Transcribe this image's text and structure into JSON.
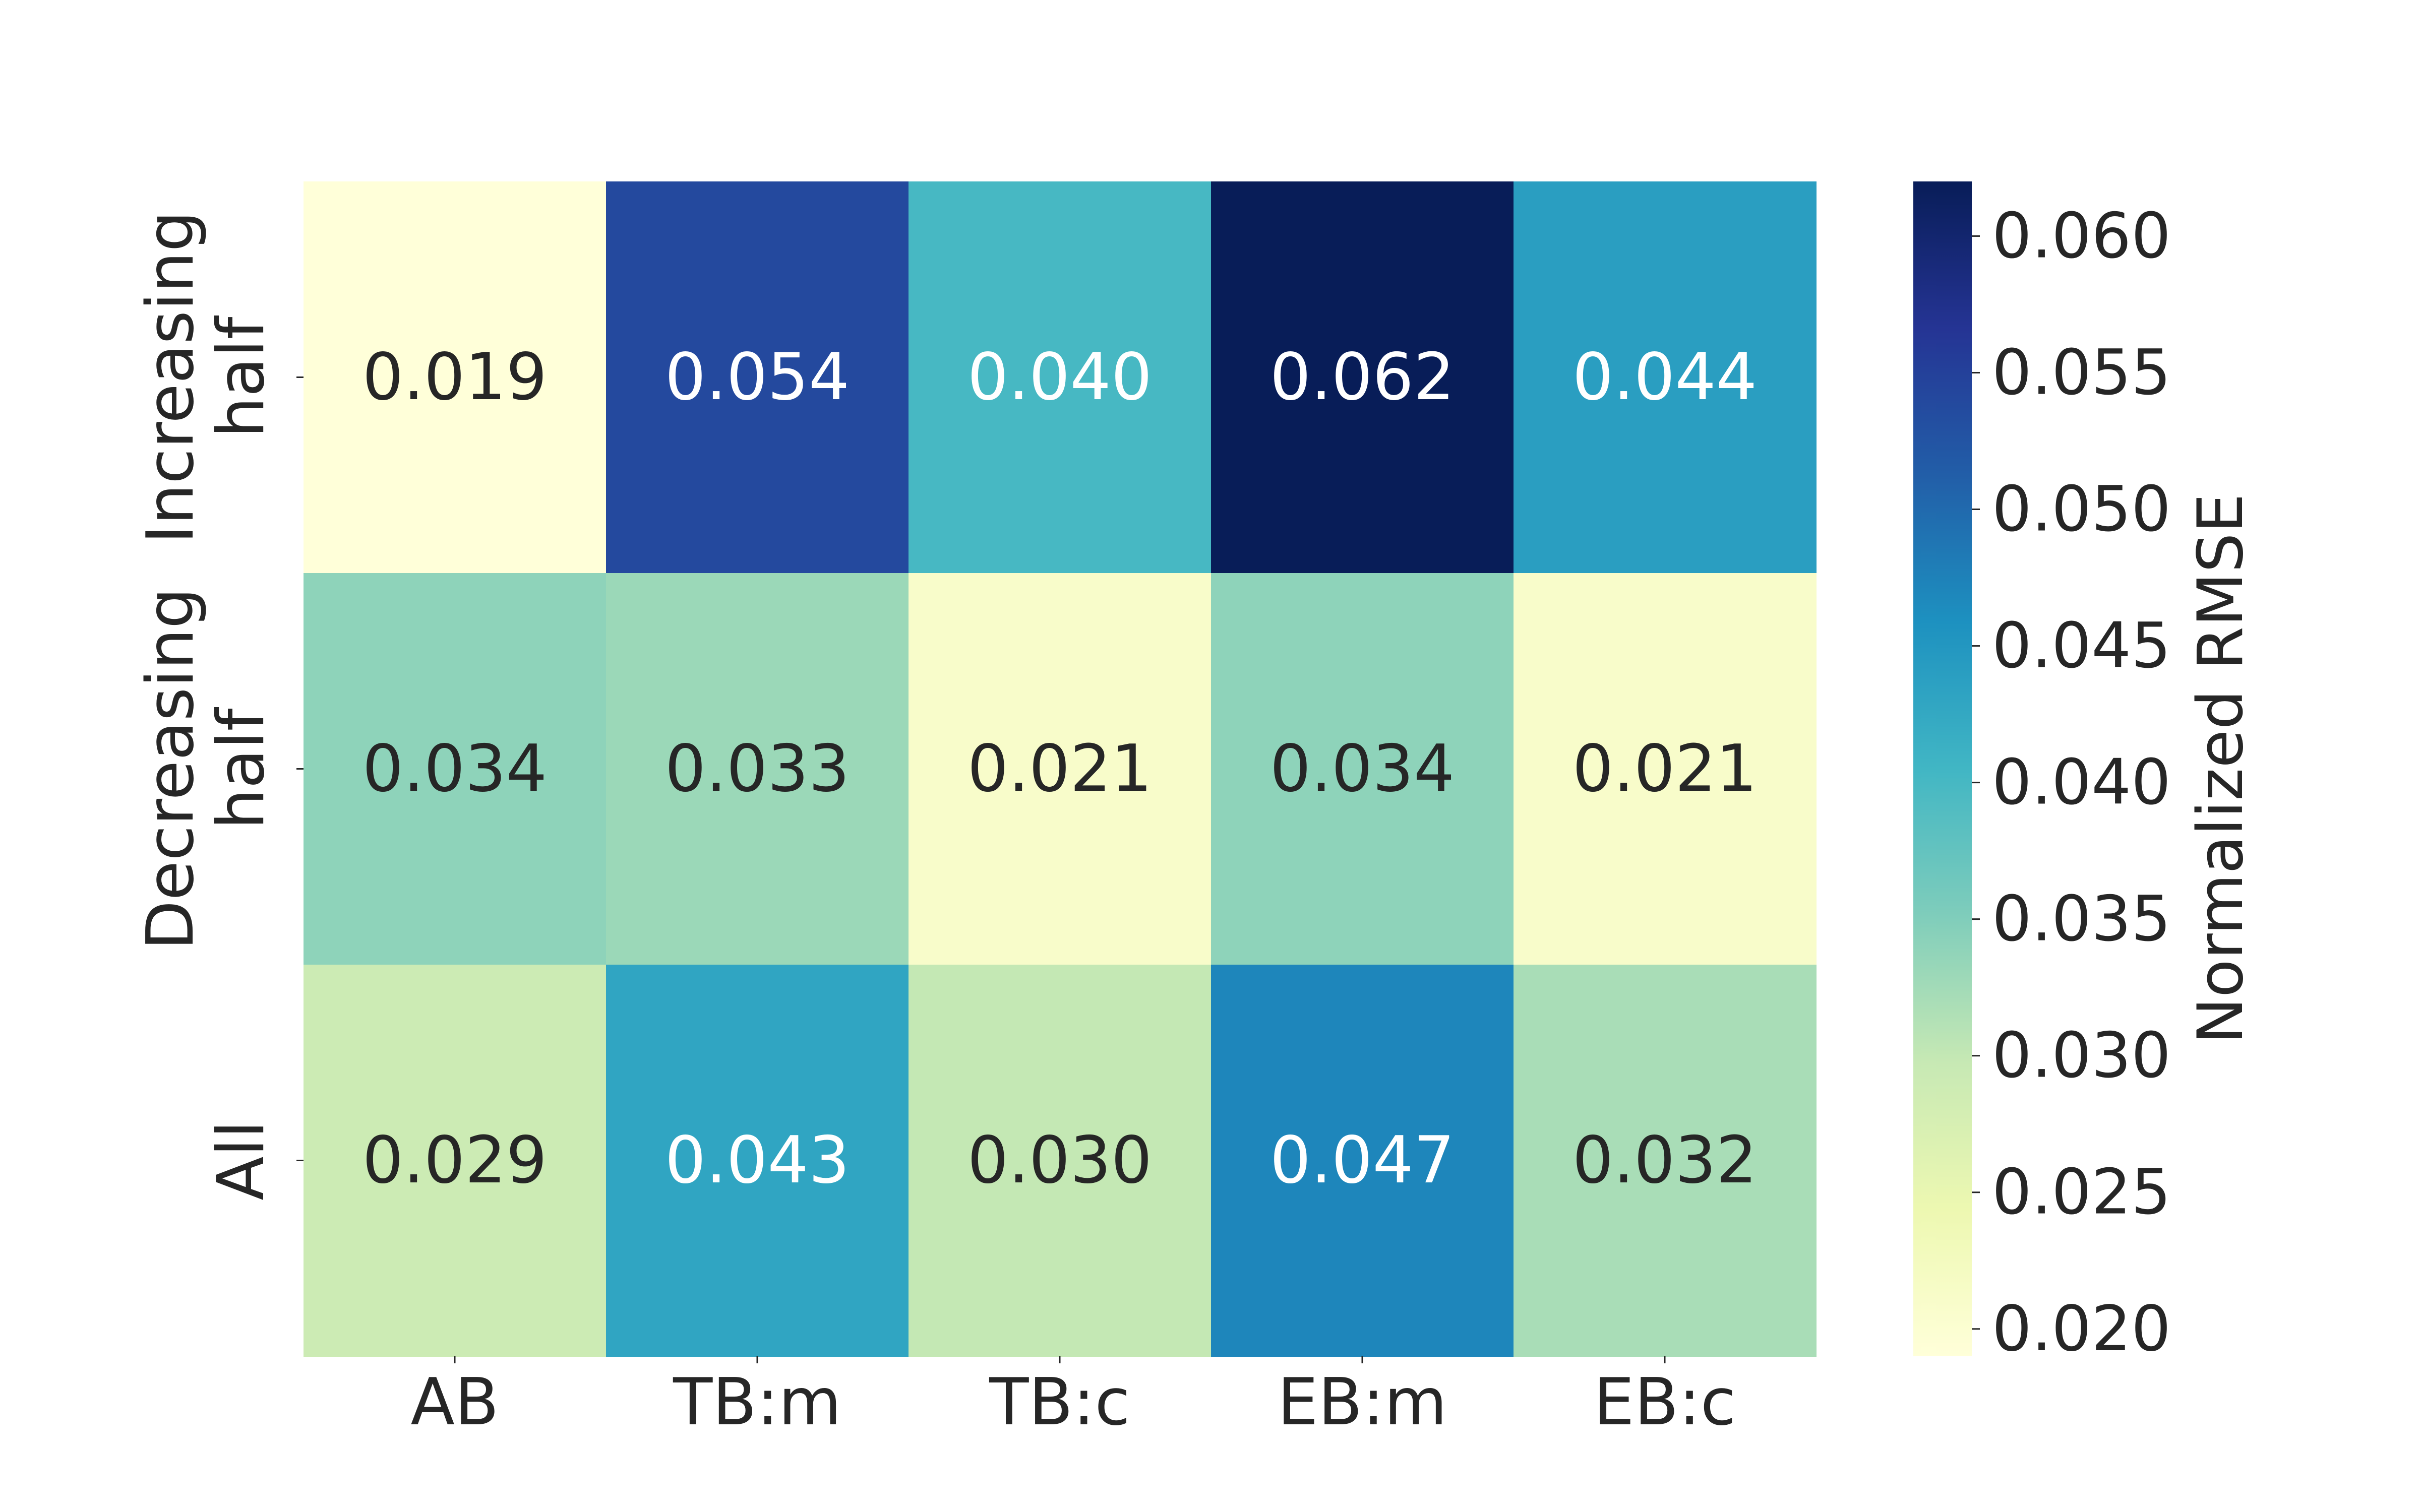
{
  "chart_data": {
    "type": "heatmap",
    "title": "",
    "xlabel": "",
    "ylabel": "",
    "x_categories": [
      "AB",
      "TB:m",
      "TB:c",
      "EB:m",
      "EB:c"
    ],
    "y_categories": [
      [
        "Increasing",
        "half"
      ],
      [
        "Decreasing",
        "half"
      ],
      [
        "All"
      ]
    ],
    "values": [
      [
        0.019,
        0.054,
        0.04,
        0.062,
        0.044
      ],
      [
        0.034,
        0.033,
        0.021,
        0.034,
        0.021
      ],
      [
        0.029,
        0.043,
        0.03,
        0.047,
        0.032
      ]
    ],
    "value_labels": [
      [
        "0.019",
        "0.054",
        "0.040",
        "0.062",
        "0.044"
      ],
      [
        "0.034",
        "0.033",
        "0.021",
        "0.034",
        "0.021"
      ],
      [
        "0.029",
        "0.043",
        "0.030",
        "0.047",
        "0.032"
      ]
    ],
    "colormap": "YlGnBu",
    "colorbar": {
      "label": "Normalized RMSE",
      "range": [
        0.019,
        0.062
      ],
      "ticks": [
        0.02,
        0.025,
        0.03,
        0.035,
        0.04,
        0.045,
        0.05,
        0.055,
        0.06
      ],
      "tick_labels": [
        "0.020",
        "0.025",
        "0.030",
        "0.035",
        "0.040",
        "0.045",
        "0.050",
        "0.055",
        "0.060"
      ]
    },
    "text_colors": {
      "dark": "#262626",
      "light": "#ffffff"
    },
    "colormap_stops": [
      "#ffffd9",
      "#edf8b1",
      "#c7e9b4",
      "#7fcdbb",
      "#41b6c4",
      "#1d91c0",
      "#225ea8",
      "#253494",
      "#081d58"
    ]
  }
}
